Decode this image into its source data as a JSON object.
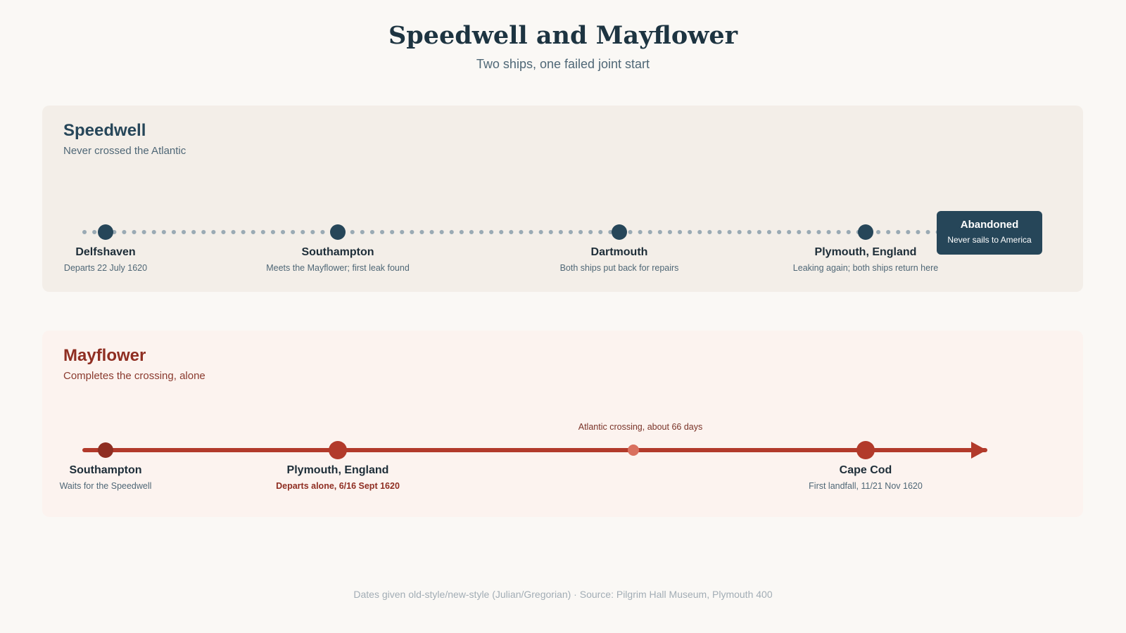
{
  "header": {
    "title": "Speedwell and Mayflower",
    "subtitle": "Two ships, one failed joint start"
  },
  "speedwell": {
    "title": "Speedwell",
    "subtitle": "Never crossed the Atlantic",
    "colors": {
      "track": "#9aaab4",
      "node": "#264659",
      "box": "#264659"
    },
    "stops": [
      {
        "name": "Delfshaven",
        "note": "Departs 22 July 1620"
      },
      {
        "name": "Southampton",
        "note": "Meets the Mayflower; first leak found"
      },
      {
        "name": "Dartmouth",
        "note": "Both ships put back for repairs"
      },
      {
        "name": "Plymouth, England",
        "note": "Leaking again; both ships return here"
      }
    ],
    "end": {
      "title": "Abandoned",
      "note": "Never sails to America"
    }
  },
  "mayflower": {
    "title": "Mayflower",
    "subtitle": "Completes the crossing, alone",
    "colors": {
      "track": "#b23a2b",
      "node": "#b23a2b",
      "node_dark": "#8f2e22",
      "mid_dot": "#d9705f"
    },
    "stops": [
      {
        "name": "Southampton",
        "note": "Waits for the Speedwell"
      },
      {
        "name": "Plymouth, England",
        "note": "Departs alone, 6/16 Sept 1620"
      },
      {
        "name": "Cape Cod",
        "note": "First landfall, 11/21 Nov 1620"
      }
    ],
    "crossing_label": "Atlantic crossing, about 66 days"
  },
  "footer": {
    "note": "Dates given old-style/new-style (Julian/Gregorian) · Source: Pilgrim Hall Museum, Plymouth 400"
  }
}
